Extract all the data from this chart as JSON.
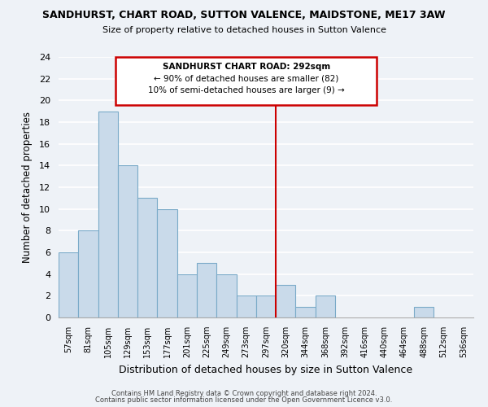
{
  "title": "SANDHURST, CHART ROAD, SUTTON VALENCE, MAIDSTONE, ME17 3AW",
  "subtitle": "Size of property relative to detached houses in Sutton Valence",
  "xlabel": "Distribution of detached houses by size in Sutton Valence",
  "ylabel": "Number of detached properties",
  "bin_labels": [
    "57sqm",
    "81sqm",
    "105sqm",
    "129sqm",
    "153sqm",
    "177sqm",
    "201sqm",
    "225sqm",
    "249sqm",
    "273sqm",
    "297sqm",
    "320sqm",
    "344sqm",
    "368sqm",
    "392sqm",
    "416sqm",
    "440sqm",
    "464sqm",
    "488sqm",
    "512sqm",
    "536sqm"
  ],
  "bar_heights": [
    6,
    8,
    19,
    14,
    11,
    10,
    4,
    5,
    4,
    2,
    2,
    3,
    1,
    2,
    0,
    0,
    0,
    0,
    1,
    0,
    0
  ],
  "bar_color": "#c9daea",
  "bar_edge_color": "#7aaac8",
  "ylim": [
    0,
    24
  ],
  "yticks": [
    0,
    2,
    4,
    6,
    8,
    10,
    12,
    14,
    16,
    18,
    20,
    22,
    24
  ],
  "red_line_x": 10.5,
  "marker_label": "SANDHURST CHART ROAD: 292sqm",
  "marker_line1": "← 90% of detached houses are smaller (82)",
  "marker_line2": "10% of semi-detached houses are larger (9) →",
  "annotation_box_color": "#ffffff",
  "annotation_border_color": "#cc0000",
  "red_line_color": "#cc0000",
  "footer1": "Contains HM Land Registry data © Crown copyright and database right 2024.",
  "footer2": "Contains public sector information licensed under the Open Government Licence v3.0.",
  "bg_color": "#eef2f7",
  "grid_color": "#ffffff"
}
